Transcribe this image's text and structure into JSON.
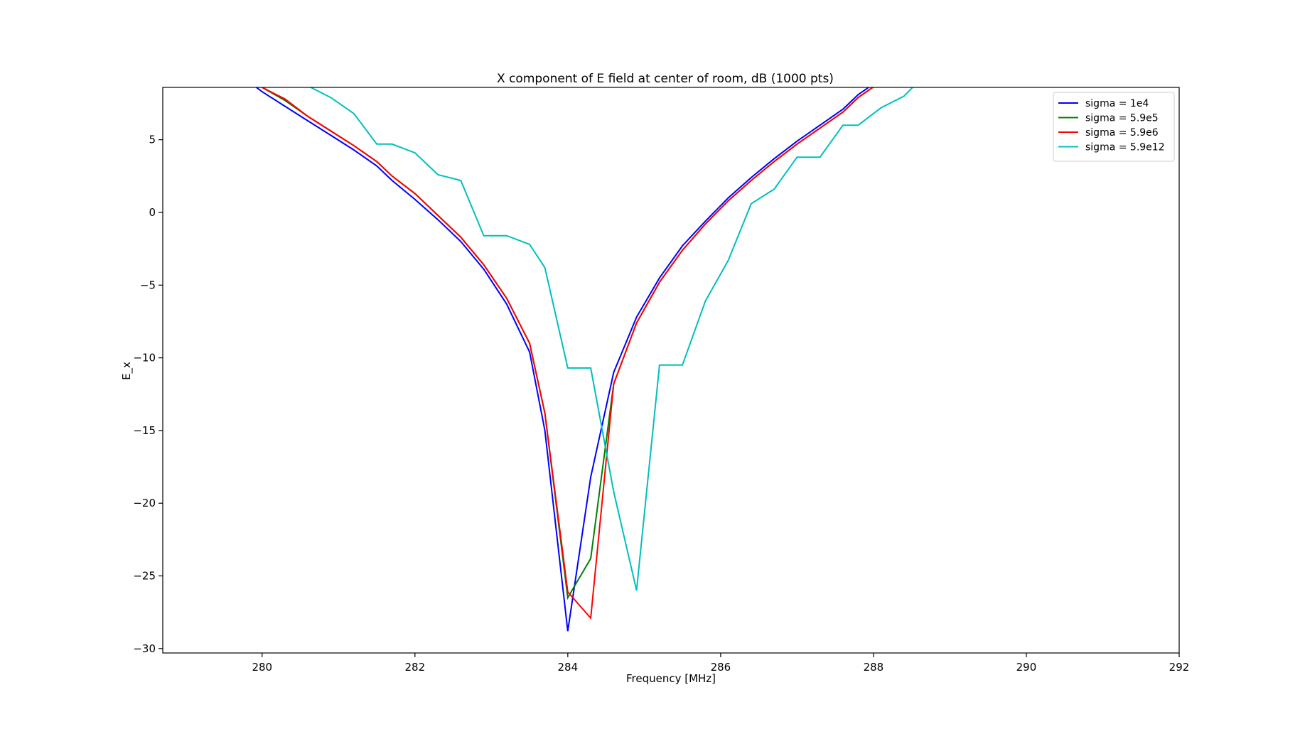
{
  "chart_data": {
    "type": "line",
    "title": "X component of E field at center of room, dB (1000 pts)",
    "xlabel": "Frequency [MHz]",
    "ylabel": "E_x",
    "xlim": [
      278.7,
      292.0
    ],
    "ylim": [
      -30.3,
      8.6
    ],
    "x_ticks": [
      280,
      282,
      284,
      286,
      288,
      290,
      292
    ],
    "y_ticks": [
      5,
      0,
      -5,
      -10,
      -15,
      -20,
      -25,
      -30
    ],
    "y_tick_labels": [
      "5",
      "0",
      "−5",
      "−10",
      "−15",
      "−20",
      "−25",
      "−30"
    ],
    "grid": false,
    "legend_position": "top-right",
    "series": [
      {
        "name": "sigma = 1e4",
        "color": "#0000ff",
        "x": [
          279.7,
          280.0,
          280.3,
          280.6,
          280.9,
          281.2,
          281.5,
          281.7,
          282.0,
          282.3,
          282.6,
          282.9,
          283.2,
          283.5,
          283.7,
          284.0,
          284.3,
          284.6,
          284.9,
          285.2,
          285.5,
          285.8,
          286.1,
          286.4,
          286.7,
          287.0,
          287.3,
          287.6,
          287.8,
          288.1,
          288.4
        ],
        "y": [
          9.5,
          8.3,
          7.3,
          6.3,
          5.3,
          4.3,
          3.2,
          2.2,
          0.9,
          -0.5,
          -2.0,
          -3.9,
          -6.3,
          -9.6,
          -15.0,
          -28.8,
          -18.2,
          -11.0,
          -7.2,
          -4.5,
          -2.3,
          -0.6,
          1.0,
          2.4,
          3.7,
          4.9,
          6.0,
          7.1,
          8.1,
          9.2,
          10.2
        ]
      },
      {
        "name": "sigma = 5.9e5",
        "color": "#008000",
        "x": [
          279.7,
          280.0,
          280.3,
          280.6,
          280.9,
          281.2,
          281.5,
          281.7,
          282.0,
          282.3,
          282.6,
          282.9,
          283.2,
          283.5,
          283.7,
          284.0,
          284.3,
          284.6,
          284.9,
          285.2,
          285.5,
          285.8,
          286.1,
          286.4,
          286.7,
          287.0,
          287.3,
          287.6,
          287.8,
          288.1,
          288.4
        ],
        "y": [
          9.4,
          8.6,
          7.7,
          6.6,
          5.6,
          4.6,
          3.5,
          2.5,
          1.3,
          -0.2,
          -1.7,
          -3.6,
          -5.9,
          -9.0,
          -13.8,
          -26.5,
          -23.8,
          -11.8,
          -7.6,
          -4.8,
          -2.6,
          -0.8,
          0.8,
          2.2,
          3.5,
          4.7,
          5.8,
          6.9,
          7.9,
          9.0,
          10.0
        ]
      },
      {
        "name": "sigma = 5.9e6",
        "color": "#ff0000",
        "x": [
          279.7,
          280.0,
          280.3,
          280.6,
          280.9,
          281.2,
          281.5,
          281.7,
          282.0,
          282.3,
          282.6,
          282.9,
          283.2,
          283.5,
          283.7,
          284.0,
          284.3,
          284.6,
          284.9,
          285.2,
          285.5,
          285.8,
          286.1,
          286.4,
          286.7,
          287.0,
          287.3,
          287.6,
          287.8,
          288.1,
          288.4
        ],
        "y": [
          9.5,
          8.6,
          7.8,
          6.6,
          5.6,
          4.6,
          3.5,
          2.5,
          1.3,
          -0.2,
          -1.7,
          -3.6,
          -5.9,
          -9.0,
          -13.8,
          -26.1,
          -27.9,
          -11.8,
          -7.6,
          -4.8,
          -2.6,
          -0.8,
          0.8,
          2.2,
          3.5,
          4.7,
          5.8,
          6.9,
          7.9,
          9.0,
          10.0
        ]
      },
      {
        "name": "sigma = 5.9e12",
        "color": "#00bfbf",
        "x": [
          280.3,
          280.6,
          280.9,
          281.2,
          281.5,
          281.7,
          282.0,
          282.3,
          282.6,
          282.9,
          283.2,
          283.5,
          283.7,
          284.0,
          284.3,
          284.6,
          284.9,
          285.2,
          285.5,
          285.8,
          286.1,
          286.4,
          286.7,
          287.0,
          287.3,
          287.6,
          287.8,
          288.1,
          288.4,
          288.7
        ],
        "y": [
          9.8,
          8.7,
          7.9,
          6.8,
          4.7,
          4.7,
          4.1,
          2.6,
          2.2,
          -1.6,
          -1.6,
          -2.2,
          -3.8,
          -10.7,
          -10.7,
          -19.2,
          -26.0,
          -10.5,
          -10.5,
          -6.1,
          -3.3,
          0.6,
          1.6,
          3.8,
          3.8,
          6.0,
          6.0,
          7.2,
          8.0,
          9.6
        ]
      }
    ]
  }
}
